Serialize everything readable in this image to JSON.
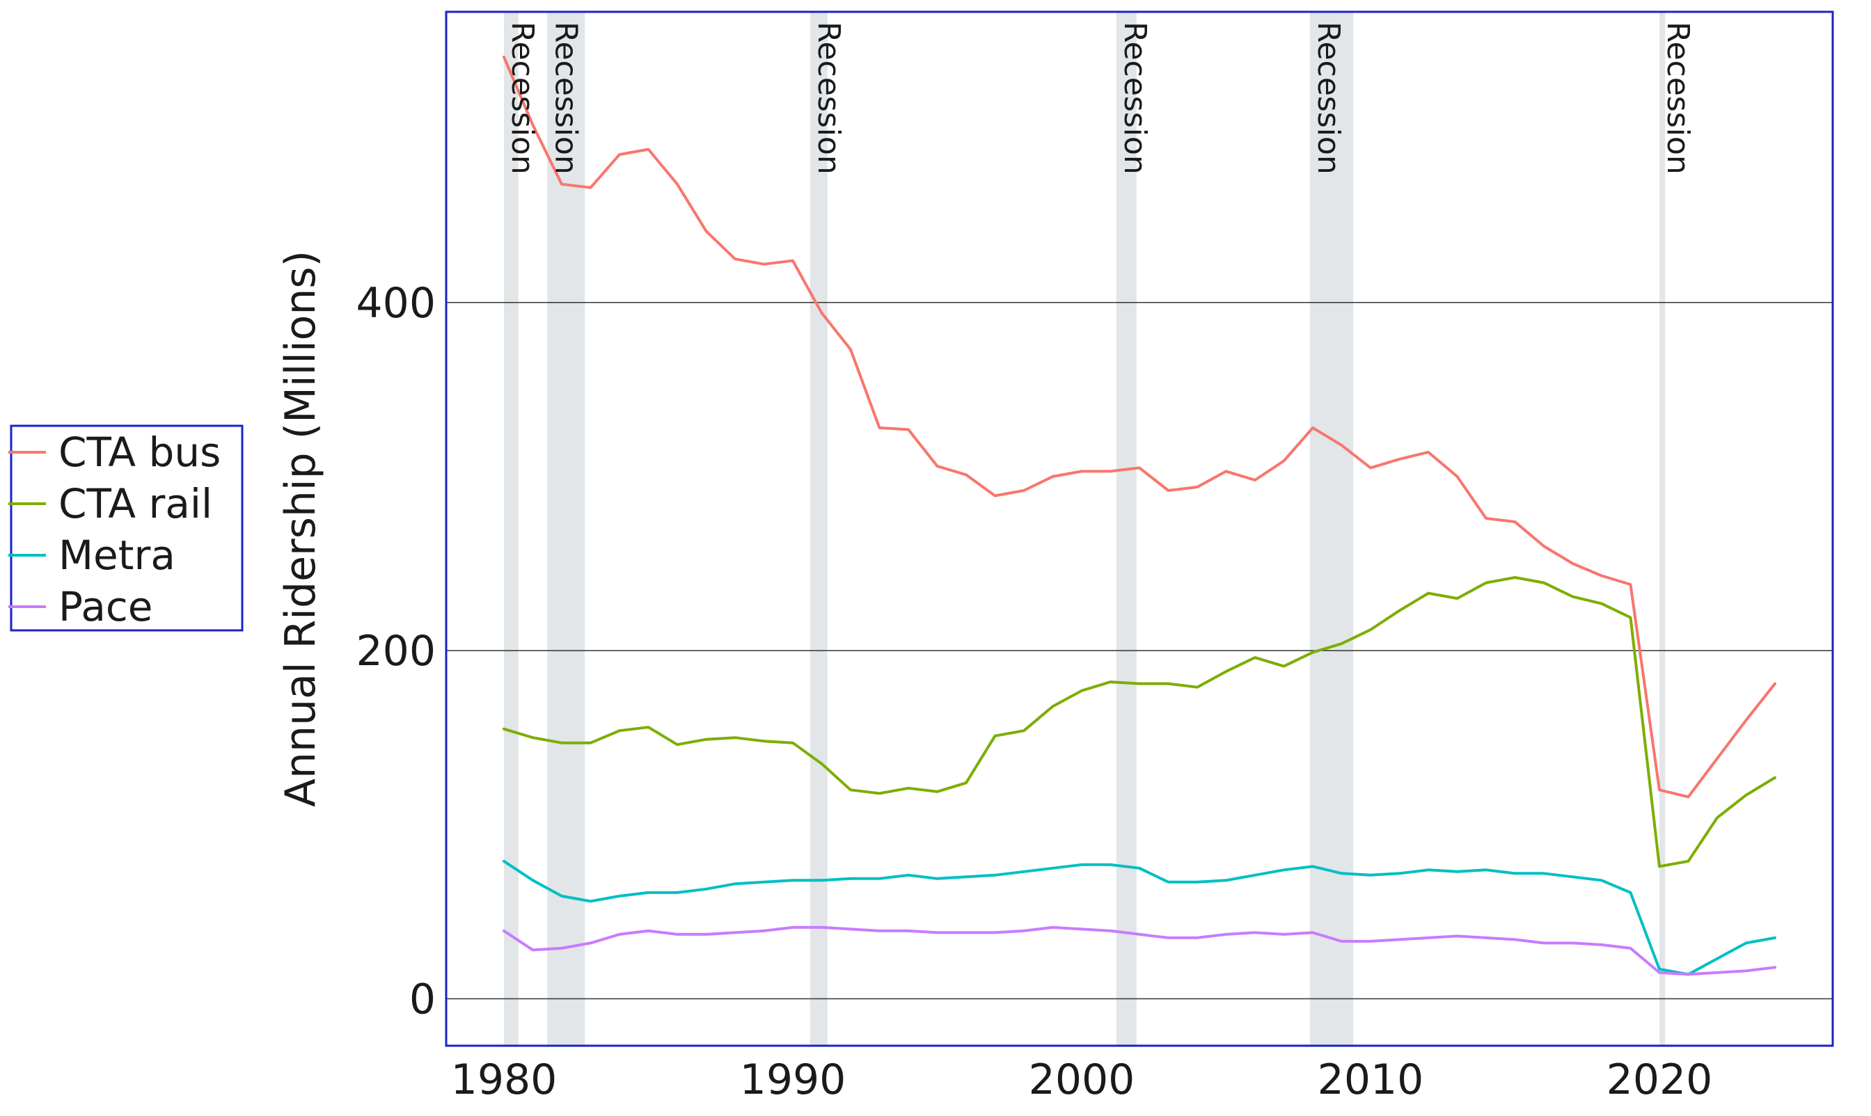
{
  "chart_data": {
    "type": "line",
    "title": "",
    "xlabel": "",
    "ylabel": "Annual Ridership (Millions)",
    "xlim": [
      1978,
      2026
    ],
    "ylim": [
      -27,
      567
    ],
    "x_ticks": [
      "1980",
      "1990",
      "2000",
      "2010",
      "2020"
    ],
    "y_ticks": [
      "0",
      "200",
      "400"
    ],
    "grid": "horizontal",
    "legend_position": "left",
    "recessions": [
      {
        "start": 1980.0,
        "end": 1980.5,
        "label": "Recession"
      },
      {
        "start": 1981.5,
        "end": 1982.8,
        "label": "Recession"
      },
      {
        "start": 1990.6,
        "end": 1991.2,
        "label": "Recession"
      },
      {
        "start": 2001.2,
        "end": 2001.9,
        "label": "Recession"
      },
      {
        "start": 2007.9,
        "end": 2009.4,
        "label": "Recession"
      },
      {
        "start": 2020.0,
        "end": 2020.2,
        "label": "Recession"
      }
    ],
    "x": [
      1980,
      1981,
      1982,
      1983,
      1984,
      1985,
      1986,
      1987,
      1988,
      1989,
      1990,
      1991,
      1992,
      1993,
      1994,
      1995,
      1996,
      1997,
      1998,
      1999,
      2000,
      2001,
      2002,
      2003,
      2004,
      2005,
      2006,
      2007,
      2008,
      2009,
      2010,
      2011,
      2012,
      2013,
      2014,
      2015,
      2016,
      2017,
      2018,
      2019,
      2020,
      2021,
      2022,
      2023,
      2024
    ],
    "series": [
      {
        "name": "CTA bus",
        "color": "#f8766d",
        "values": [
          541,
          502,
          468,
          466,
          485,
          488,
          468,
          441,
          425,
          422,
          424,
          394,
          373,
          328,
          327,
          306,
          301,
          289,
          292,
          300,
          303,
          303,
          305,
          292,
          294,
          303,
          298,
          309,
          328,
          318,
          305,
          310,
          314,
          300,
          276,
          274,
          260,
          250,
          243,
          238,
          120,
          116,
          138,
          160,
          181
        ]
      },
      {
        "name": "CTA rail",
        "color": "#7cae00",
        "values": [
          155,
          150,
          147,
          147,
          154,
          156,
          146,
          149,
          150,
          148,
          147,
          135,
          120,
          118,
          121,
          119,
          124,
          151,
          154,
          168,
          177,
          182,
          181,
          181,
          179,
          188,
          196,
          191,
          199,
          204,
          212,
          223,
          233,
          230,
          239,
          242,
          239,
          231,
          227,
          219,
          76,
          79,
          104,
          117,
          127
        ]
      },
      {
        "name": "Metra",
        "color": "#00bfc4",
        "values": [
          79,
          68,
          59,
          56,
          59,
          61,
          61,
          63,
          66,
          67,
          68,
          68,
          69,
          69,
          71,
          69,
          70,
          71,
          73,
          75,
          77,
          77,
          75,
          67,
          67,
          68,
          71,
          74,
          76,
          72,
          71,
          72,
          74,
          73,
          74,
          72,
          72,
          70,
          68,
          61,
          17,
          14,
          23,
          32,
          35
        ]
      },
      {
        "name": "Pace",
        "color": "#c77cff",
        "values": [
          39,
          28,
          29,
          32,
          37,
          39,
          37,
          37,
          38,
          39,
          41,
          41,
          40,
          39,
          39,
          38,
          38,
          38,
          39,
          41,
          40,
          39,
          37,
          35,
          35,
          37,
          38,
          37,
          38,
          33,
          33,
          34,
          35,
          36,
          35,
          34,
          32,
          32,
          31,
          29,
          15,
          14,
          15,
          16,
          18
        ]
      }
    ]
  }
}
